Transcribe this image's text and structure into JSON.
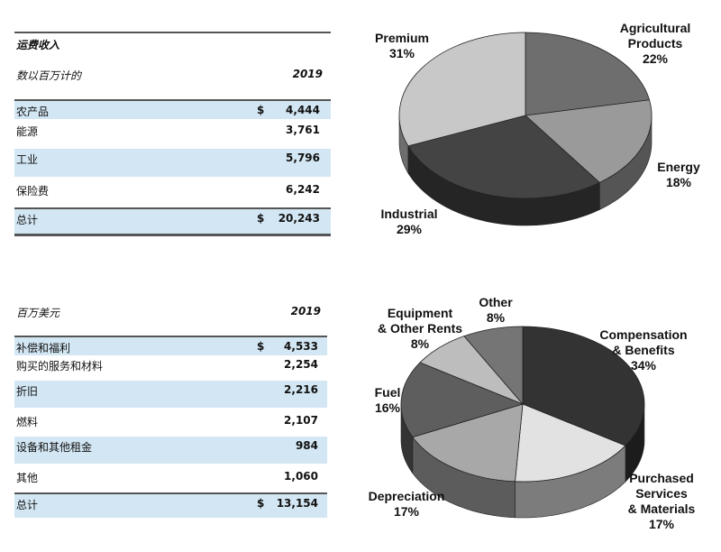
{
  "table1": {
    "title": "运费收入",
    "unit": "数以百万计的",
    "year": "2019",
    "currency": "$",
    "rows": [
      {
        "label": "农产品",
        "currency": "$",
        "value": "4,444"
      },
      {
        "label": "能源",
        "currency": "",
        "value": "3,761"
      },
      {
        "label": "工业",
        "currency": "",
        "value": "5,796"
      },
      {
        "label": "保险费",
        "currency": "",
        "value": "6,242"
      }
    ],
    "total": {
      "label": "总计",
      "currency": "$",
      "value": "20,243"
    }
  },
  "table2": {
    "unit": "百万美元",
    "year": "2019",
    "rows": [
      {
        "label": "补偿和福利",
        "currency": "$",
        "value": "4,533"
      },
      {
        "label": "购买的服务和材料",
        "currency": "",
        "value": "2,254"
      },
      {
        "label": "折旧",
        "currency": "",
        "value": "2,216"
      },
      {
        "label": "燃料",
        "currency": "",
        "value": "2,107"
      },
      {
        "label": "设备和其他租金",
        "currency": "",
        "value": "984"
      },
      {
        "label": "其他",
        "currency": "",
        "value": "1,060"
      }
    ],
    "total": {
      "label": "总计",
      "currency": "$",
      "value": "13,154"
    }
  },
  "chart_data": [
    {
      "type": "pie",
      "slices": [
        {
          "label": [
            "Agricultural",
            "Products"
          ],
          "pct_text": "22%",
          "value": 22,
          "color": "#6e6e6e"
        },
        {
          "label": [
            "Energy"
          ],
          "pct_text": "18%",
          "value": 18,
          "color": "#9a9a9a"
        },
        {
          "label": [
            "Industrial"
          ],
          "pct_text": "29%",
          "value": 29,
          "color": "#444444"
        },
        {
          "label": [
            "Premium"
          ],
          "pct_text": "31%",
          "value": 31,
          "color": "#c8c8c8"
        }
      ]
    },
    {
      "type": "pie",
      "slices": [
        {
          "label": [
            "Compensation",
            "& Benefits"
          ],
          "pct_text": "34%",
          "value": 34,
          "color": "#333333"
        },
        {
          "label": [
            "Purchased",
            "Services",
            "& Materials"
          ],
          "pct_text": "17%",
          "value": 17,
          "color": "#e2e2e2"
        },
        {
          "label": [
            "Depreciation"
          ],
          "pct_text": "17%",
          "value": 17,
          "color": "#a8a8a8"
        },
        {
          "label": [
            "Fuel"
          ],
          "pct_text": "16%",
          "value": 16,
          "color": "#5e5e5e"
        },
        {
          "label": [
            "Equipment",
            "& Other Rents"
          ],
          "pct_text": "8%",
          "value": 8,
          "color": "#bdbdbd"
        },
        {
          "label": [
            "Other"
          ],
          "pct_text": "8%",
          "value": 8,
          "color": "#757575"
        }
      ]
    }
  ]
}
